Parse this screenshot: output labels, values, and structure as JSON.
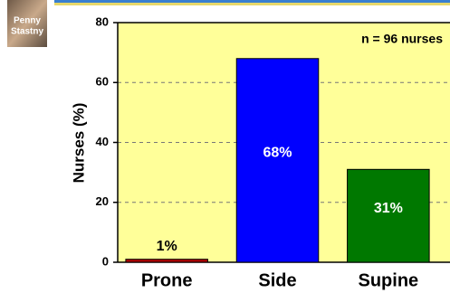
{
  "photo_caption": [
    "Penny",
    "Stastny"
  ],
  "chart_data": {
    "type": "bar",
    "y_label": "Nurses (%)",
    "annotation": "n = 96 nurses",
    "categories": [
      "Prone",
      "Side",
      "Supine"
    ],
    "values": [
      1,
      68,
      31
    ],
    "value_labels": [
      "1%",
      "68%",
      "31%"
    ],
    "colors": [
      "#b00000",
      "#0000ff",
      "#007800"
    ],
    "ylim": [
      0,
      80
    ],
    "yticks": [
      0,
      20,
      40,
      60,
      80
    ],
    "grid": true
  }
}
